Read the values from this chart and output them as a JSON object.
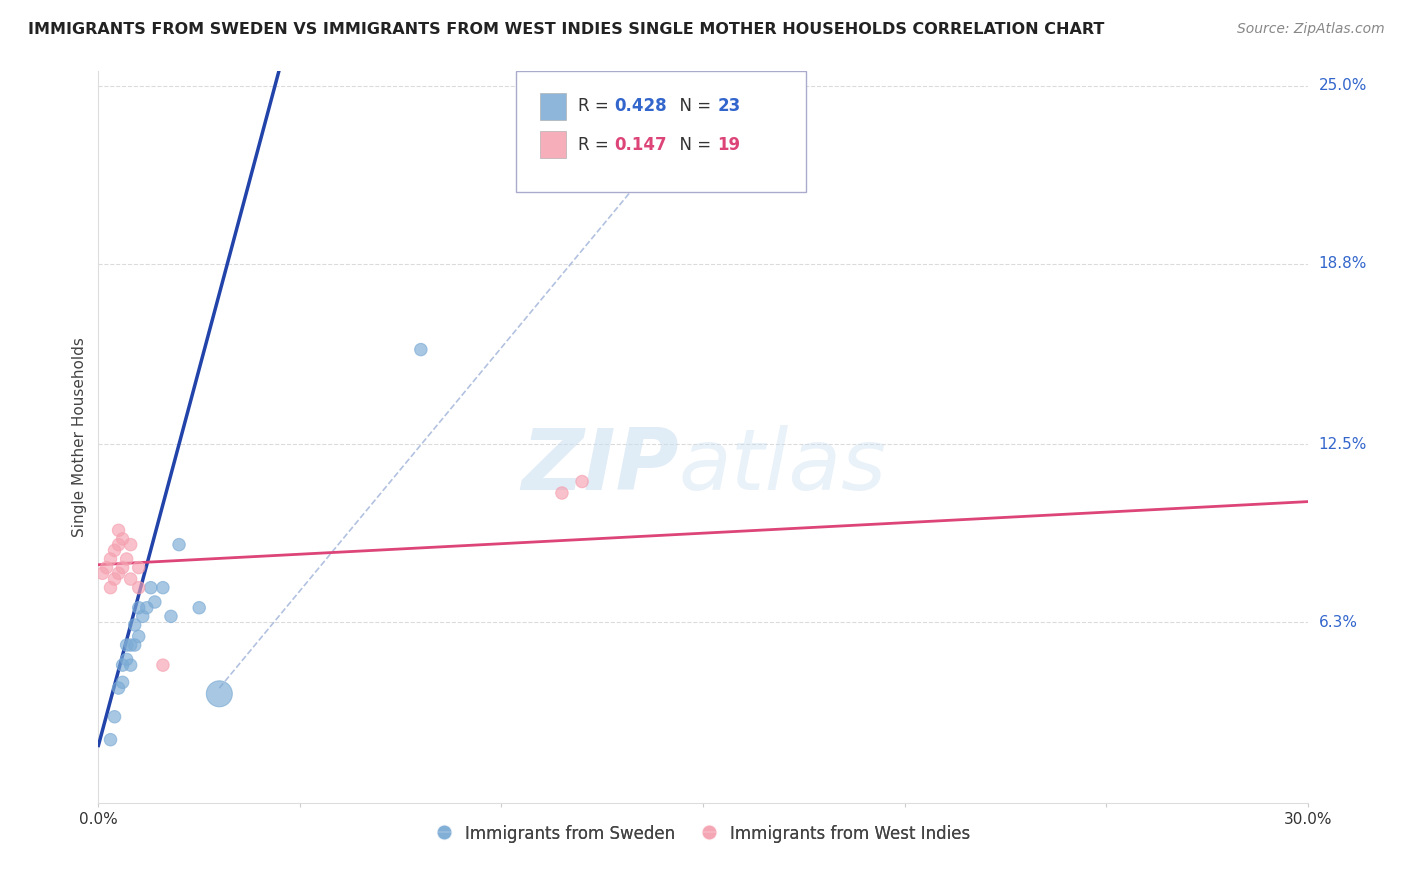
{
  "title": "IMMIGRANTS FROM SWEDEN VS IMMIGRANTS FROM WEST INDIES SINGLE MOTHER HOUSEHOLDS CORRELATION CHART",
  "source": "Source: ZipAtlas.com",
  "ylabel": "Single Mother Households",
  "xlim": [
    0.0,
    0.3
  ],
  "ylim": [
    0.0,
    0.25
  ],
  "ytick_positions": [
    0.063,
    0.125,
    0.188,
    0.25
  ],
  "ytick_labels": [
    "6.3%",
    "12.5%",
    "18.8%",
    "25.0%"
  ],
  "sweden_color": "#7aaad4",
  "west_indies_color": "#f5a0b0",
  "sweden_line_color": "#2244aa",
  "west_indies_line_color": "#dd4477",
  "sweden_R": 0.428,
  "sweden_N": 23,
  "west_indies_R": 0.147,
  "west_indies_N": 19,
  "legend_sweden": "Immigrants from Sweden",
  "legend_west_indies": "Immigrants from West Indies",
  "watermark_zip": "ZIP",
  "watermark_atlas": "atlas",
  "sweden_x": [
    0.003,
    0.004,
    0.005,
    0.006,
    0.006,
    0.007,
    0.007,
    0.008,
    0.008,
    0.009,
    0.009,
    0.01,
    0.01,
    0.011,
    0.012,
    0.013,
    0.014,
    0.016,
    0.018,
    0.02,
    0.025,
    0.03,
    0.08
  ],
  "sweden_y": [
    0.022,
    0.03,
    0.04,
    0.042,
    0.048,
    0.05,
    0.055,
    0.048,
    0.055,
    0.055,
    0.062,
    0.058,
    0.068,
    0.065,
    0.068,
    0.075,
    0.07,
    0.075,
    0.065,
    0.09,
    0.068,
    0.038,
    0.158
  ],
  "sweden_sizes": [
    80,
    80,
    80,
    80,
    80,
    80,
    80,
    80,
    80,
    80,
    80,
    80,
    80,
    80,
    80,
    80,
    80,
    80,
    80,
    80,
    80,
    350,
    80
  ],
  "west_indies_x": [
    0.001,
    0.002,
    0.003,
    0.003,
    0.004,
    0.004,
    0.005,
    0.005,
    0.005,
    0.006,
    0.006,
    0.007,
    0.008,
    0.008,
    0.01,
    0.01,
    0.016,
    0.115,
    0.12
  ],
  "west_indies_y": [
    0.08,
    0.082,
    0.075,
    0.085,
    0.078,
    0.088,
    0.08,
    0.09,
    0.095,
    0.082,
    0.092,
    0.085,
    0.09,
    0.078,
    0.082,
    0.075,
    0.048,
    0.108,
    0.112
  ],
  "west_indies_sizes": [
    80,
    80,
    80,
    80,
    80,
    80,
    80,
    80,
    80,
    80,
    80,
    80,
    80,
    80,
    80,
    80,
    80,
    80,
    80
  ],
  "grid_color": "#cccccc",
  "ref_line_color": "#aabbdd",
  "background_color": "#ffffff",
  "title_color": "#222222",
  "source_color": "#888888",
  "ylabel_color": "#444444",
  "tick_color": "#3366cc",
  "title_fontsize": 11.5,
  "axis_label_fontsize": 11,
  "tick_fontsize": 11,
  "legend_fontsize": 12,
  "source_fontsize": 10
}
